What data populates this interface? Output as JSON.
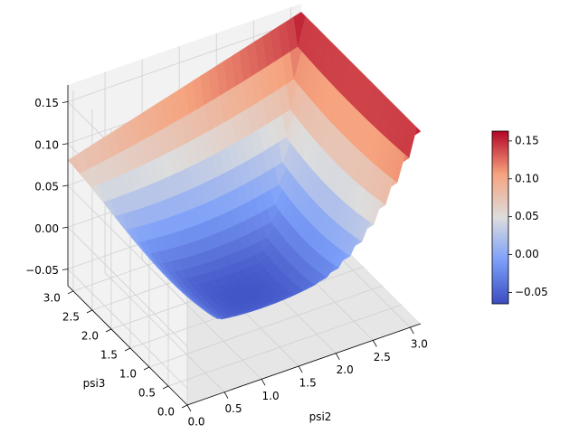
{
  "chart_data": {
    "type": "surface3d",
    "xlabel": "psi2",
    "ylabel": "psi3",
    "zlabel": "",
    "title": "",
    "xlim": [
      0,
      3.14159
    ],
    "ylim": [
      0,
      3.14159
    ],
    "zlim": [
      -0.07,
      0.17
    ],
    "x_ticks": [
      "0.0",
      "0.5",
      "1.0",
      "1.5",
      "2.0",
      "2.5",
      "3.0"
    ],
    "y_ticks": [
      "0.0",
      "0.5",
      "1.0",
      "1.5",
      "2.0",
      "2.5",
      "3.0"
    ],
    "z_ticks": [
      "−0.05",
      "0.00",
      "0.05",
      "0.10",
      "0.15"
    ],
    "z_tick_values": [
      -0.05,
      0.0,
      0.05,
      0.1,
      0.15
    ],
    "colormap": "coolwarm",
    "colorbar": {
      "min": -0.065,
      "max": 0.163,
      "ticks": [
        "−0.05",
        "0.00",
        "0.05",
        "0.10",
        "0.15"
      ],
      "tick_values": [
        -0.05,
        0.0,
        0.05,
        0.1,
        0.15
      ]
    },
    "corner_values": [
      {
        "psi2": 0.0,
        "psi3": 0.0,
        "z": 0.08
      },
      {
        "psi2": 3.14,
        "psi3": 0.0,
        "z": 0.16
      },
      {
        "psi2": 0.0,
        "psi3": 3.14,
        "z": 0.08
      },
      {
        "psi2": 3.14,
        "psi3": 3.14,
        "z": 0.16
      }
    ],
    "minimum_value": -0.065,
    "grid": true
  },
  "colors": {
    "pane": "#f2f2f2",
    "pane_side": "#e6e6e6",
    "grid": "#d0d0d0",
    "cold": "#3b4cc0",
    "neutral": "#dddddd",
    "hot": "#b40426"
  }
}
